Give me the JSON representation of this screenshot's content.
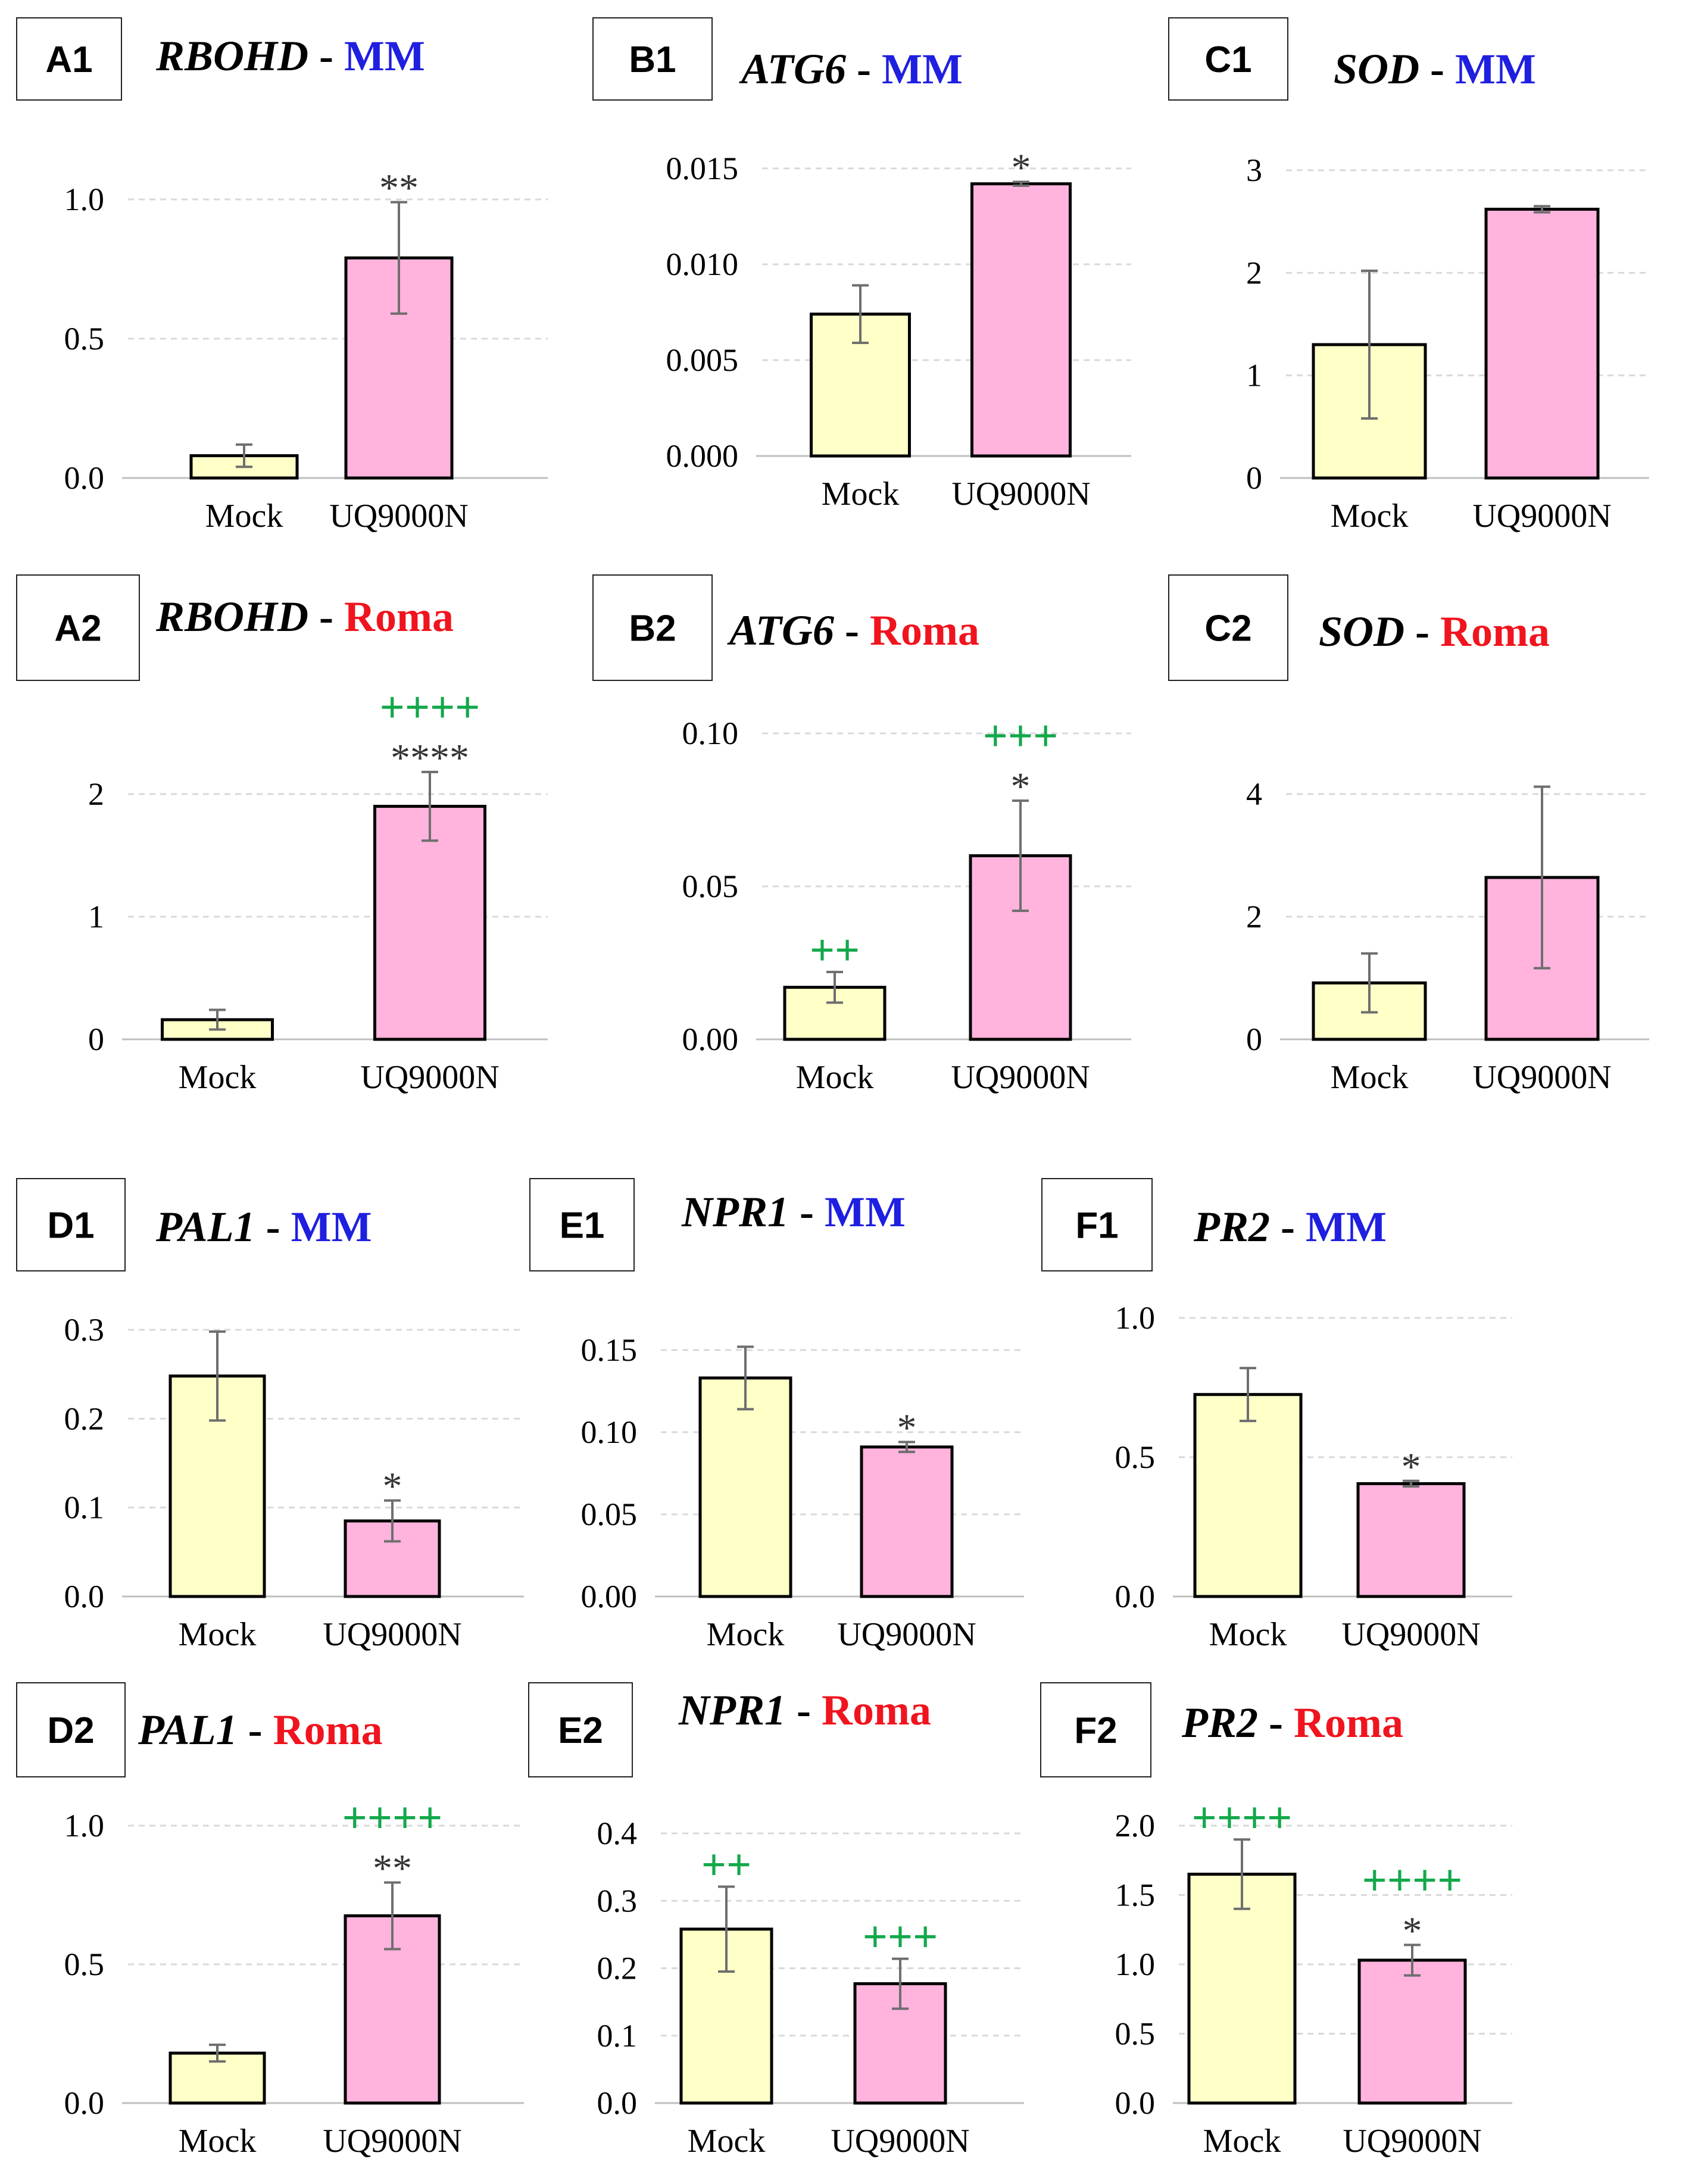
{
  "colors": {
    "mock_fill": "#FFFFC8",
    "treat_fill": "#FFB3DD",
    "mm": "#1F1FE0",
    "roma": "#F0141E",
    "green_sig": "#12A84A",
    "star": "#333333",
    "errorbar": "#6E6E6E",
    "grid": "#D9D9D9",
    "axis": "#000000"
  },
  "chart_data": [
    {
      "id": "A1",
      "type": "bar",
      "gene": "RBOHD",
      "separator": " - ",
      "variety": "MM",
      "variety_color": "mm",
      "categories": [
        "Mock",
        "UQ9000N"
      ],
      "values": [
        0.08,
        0.79
      ],
      "errors": [
        0.04,
        0.2
      ],
      "ylim": [
        0,
        1.0
      ],
      "yticks": [
        "0.0",
        "0.5",
        "1.0"
      ],
      "sig_star": [
        "",
        "**"
      ],
      "sig_plus": [
        "",
        ""
      ]
    },
    {
      "id": "B1",
      "type": "bar",
      "gene": "ATG6",
      "separator": " - ",
      "variety": "MM",
      "variety_color": "mm",
      "categories": [
        "Mock",
        "UQ9000N"
      ],
      "values": [
        0.0074,
        0.0142
      ],
      "errors": [
        0.0015,
        0.0001
      ],
      "ylim": [
        0,
        0.015
      ],
      "yticks": [
        "0.000",
        "0.005",
        "0.010",
        "0.015"
      ],
      "sig_star": [
        "",
        "*"
      ],
      "sig_plus": [
        "",
        ""
      ]
    },
    {
      "id": "C1",
      "type": "bar",
      "gene": "SOD",
      "separator": " - ",
      "variety": "MM",
      "variety_color": "mm",
      "categories": [
        "Mock",
        "UQ9000N"
      ],
      "values": [
        1.3,
        2.62
      ],
      "errors": [
        0.72,
        0.03
      ],
      "ylim": [
        0,
        3
      ],
      "yticks": [
        "0",
        "1",
        "2",
        "3"
      ],
      "sig_star": [
        "",
        ""
      ],
      "sig_plus": [
        "",
        ""
      ]
    },
    {
      "id": "A2",
      "type": "bar",
      "gene": "RBOHD",
      "separator": " - ",
      "variety": "Roma",
      "variety_color": "roma",
      "categories": [
        "Mock",
        "UQ9000N"
      ],
      "values": [
        0.16,
        1.9
      ],
      "errors": [
        0.08,
        0.28
      ],
      "ylim": [
        0,
        2
      ],
      "yticks": [
        "0",
        "1",
        "2"
      ],
      "sig_star": [
        "",
        "****"
      ],
      "sig_plus": [
        "",
        "++++"
      ]
    },
    {
      "id": "B2",
      "type": "bar",
      "gene": "ATG6",
      "separator": " - ",
      "variety": "Roma",
      "variety_color": "roma",
      "categories": [
        "Mock",
        "UQ9000N"
      ],
      "values": [
        0.017,
        0.06
      ],
      "errors": [
        0.005,
        0.018
      ],
      "ylim": [
        0,
        0.1
      ],
      "yticks": [
        "0.00",
        "0.05",
        "0.10"
      ],
      "sig_star": [
        "",
        "*"
      ],
      "sig_plus": [
        "++",
        "+++"
      ]
    },
    {
      "id": "C2",
      "type": "bar",
      "gene": "SOD",
      "separator": " - ",
      "variety": "Roma",
      "variety_color": "roma",
      "categories": [
        "Mock",
        "UQ9000N"
      ],
      "values": [
        0.92,
        2.64
      ],
      "errors": [
        0.48,
        1.48
      ],
      "ylim": [
        0,
        4
      ],
      "yticks": [
        "0",
        "2",
        "4"
      ],
      "sig_star": [
        "",
        ""
      ],
      "sig_plus": [
        "",
        ""
      ]
    },
    {
      "id": "D1",
      "type": "bar",
      "gene": "PAL1",
      "separator": " - ",
      "variety": "MM",
      "variety_color": "mm",
      "categories": [
        "Mock",
        "UQ9000N"
      ],
      "values": [
        0.248,
        0.085
      ],
      "errors": [
        0.05,
        0.023
      ],
      "ylim": [
        0,
        0.3
      ],
      "yticks": [
        "0.0",
        "0.1",
        "0.2",
        "0.3"
      ],
      "sig_star": [
        "",
        "*"
      ],
      "sig_plus": [
        "",
        ""
      ]
    },
    {
      "id": "E1",
      "type": "bar",
      "gene": "NPR1",
      "separator": " - ",
      "variety": "MM",
      "variety_color": "mm",
      "categories": [
        "Mock",
        "UQ9000N"
      ],
      "values": [
        0.133,
        0.091
      ],
      "errors": [
        0.019,
        0.003
      ],
      "ylim": [
        0,
        0.15
      ],
      "yticks": [
        "0.00",
        "0.05",
        "0.10",
        "0.15"
      ],
      "sig_star": [
        "",
        "*"
      ],
      "sig_plus": [
        "",
        ""
      ]
    },
    {
      "id": "F1",
      "type": "bar",
      "gene": "PR2",
      "separator": " - ",
      "variety": "MM",
      "variety_color": "mm",
      "categories": [
        "Mock",
        "UQ9000N"
      ],
      "values": [
        0.725,
        0.405
      ],
      "errors": [
        0.095,
        0.01
      ],
      "ylim": [
        0,
        1.0
      ],
      "yticks": [
        "0.0",
        "0.5",
        "1.0"
      ],
      "sig_star": [
        "",
        "*"
      ],
      "sig_plus": [
        "",
        ""
      ]
    },
    {
      "id": "D2",
      "type": "bar",
      "gene": "PAL1",
      "separator": " - ",
      "variety": "Roma",
      "variety_color": "roma",
      "categories": [
        "Mock",
        "UQ9000N"
      ],
      "values": [
        0.18,
        0.675
      ],
      "errors": [
        0.03,
        0.12
      ],
      "ylim": [
        0,
        1.0
      ],
      "yticks": [
        "0.0",
        "0.5",
        "1.0"
      ],
      "sig_star": [
        "",
        "**"
      ],
      "sig_plus": [
        "",
        "++++"
      ]
    },
    {
      "id": "E2",
      "type": "bar",
      "gene": "NPR1",
      "separator": " - ",
      "variety": "Roma",
      "variety_color": "roma",
      "categories": [
        "Mock",
        "UQ9000N"
      ],
      "values": [
        0.258,
        0.177
      ],
      "errors": [
        0.063,
        0.037
      ],
      "ylim": [
        0,
        0.4
      ],
      "yticks": [
        "0.0",
        "0.1",
        "0.2",
        "0.3",
        "0.4"
      ],
      "sig_star": [
        "",
        ""
      ],
      "sig_plus": [
        "++",
        "+++"
      ]
    },
    {
      "id": "F2",
      "type": "bar",
      "gene": "PR2",
      "separator": " - ",
      "variety": "Roma",
      "variety_color": "roma",
      "categories": [
        "Mock",
        "UQ9000N"
      ],
      "values": [
        1.65,
        1.03
      ],
      "errors": [
        0.25,
        0.11
      ],
      "ylim": [
        0,
        2.0
      ],
      "yticks": [
        "0.0",
        "0.5",
        "1.0",
        "1.5",
        "2.0"
      ],
      "sig_star": [
        "",
        "*"
      ],
      "sig_plus": [
        "++++",
        "++++"
      ]
    }
  ]
}
